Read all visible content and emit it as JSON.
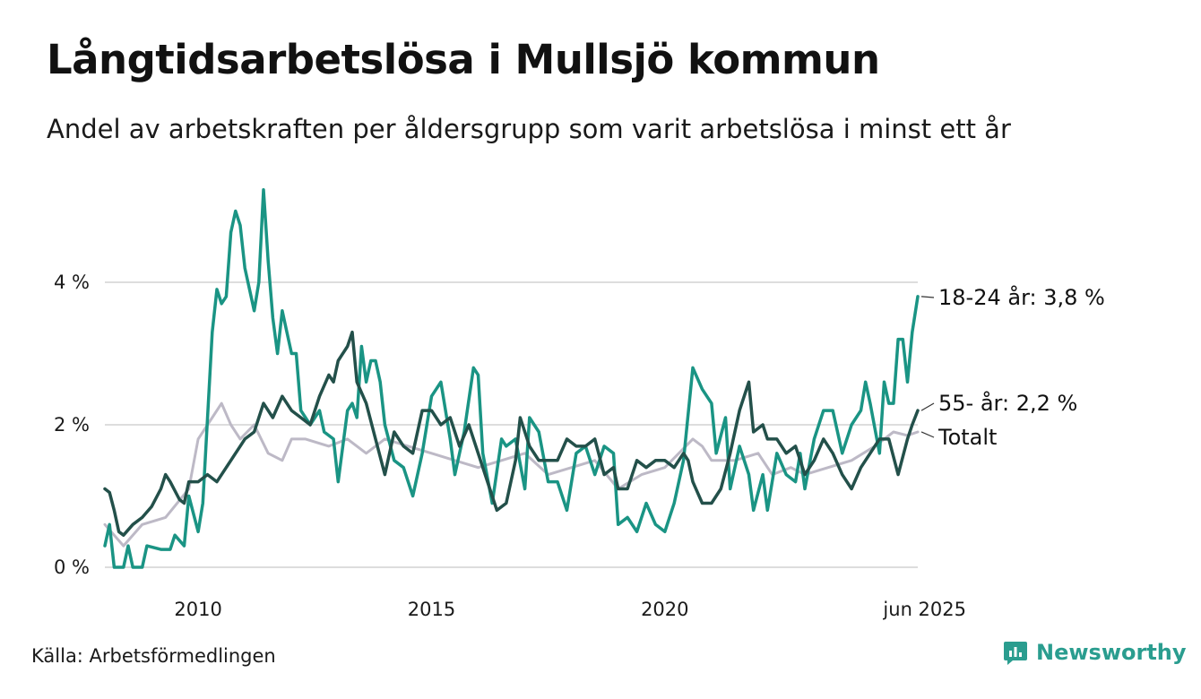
{
  "title": "Långtidsarbetslösa i Mullsjö kommun",
  "subtitle": "Andel av arbetskraften per åldersgrupp som varit arbetslösa i minst ett år",
  "source": "Källa: Arbetsförmedlingen",
  "brand": "Newsworthy",
  "colors": {
    "youth": "#1a9484",
    "senior": "#23504a",
    "total": "#bdb9c6",
    "grid": "#dddddd",
    "brand": "#2a9d8f"
  },
  "chart_data": {
    "type": "line",
    "title": "Långtidsarbetslösa i Mullsjö kommun",
    "subtitle": "Andel av arbetskraften per åldersgrupp som varit arbetslösa i minst ett år",
    "x_range": [
      2008.0,
      2025.42
    ],
    "ylim": [
      0,
      5.5
    ],
    "y_ticks": [
      {
        "value": 0,
        "label": "0 %"
      },
      {
        "value": 2,
        "label": "2 %"
      },
      {
        "value": 4,
        "label": "4 %"
      }
    ],
    "x_ticks": [
      {
        "value": 2010,
        "label": "2010"
      },
      {
        "value": 2015,
        "label": "2015"
      },
      {
        "value": 2020,
        "label": "2020"
      },
      {
        "value": 2025.42,
        "label": "jun 2025"
      }
    ],
    "grid": "horizontal",
    "series": [
      {
        "name": "Totalt",
        "key": "total",
        "end_label": "Totalt",
        "points": [
          [
            2008.0,
            0.6
          ],
          [
            2008.4,
            0.3
          ],
          [
            2008.8,
            0.6
          ],
          [
            2009.3,
            0.7
          ],
          [
            2009.8,
            1.1
          ],
          [
            2010.0,
            1.8
          ],
          [
            2010.3,
            2.1
          ],
          [
            2010.5,
            2.3
          ],
          [
            2010.7,
            2.0
          ],
          [
            2010.9,
            1.8
          ],
          [
            2011.2,
            2.0
          ],
          [
            2011.5,
            1.6
          ],
          [
            2011.8,
            1.5
          ],
          [
            2012.0,
            1.8
          ],
          [
            2012.3,
            1.8
          ],
          [
            2012.8,
            1.7
          ],
          [
            2013.2,
            1.8
          ],
          [
            2013.6,
            1.6
          ],
          [
            2014.0,
            1.8
          ],
          [
            2014.5,
            1.7
          ],
          [
            2015.0,
            1.6
          ],
          [
            2015.5,
            1.5
          ],
          [
            2016.0,
            1.4
          ],
          [
            2016.5,
            1.5
          ],
          [
            2017.0,
            1.6
          ],
          [
            2017.5,
            1.3
          ],
          [
            2018.0,
            1.4
          ],
          [
            2018.5,
            1.5
          ],
          [
            2019.0,
            1.1
          ],
          [
            2019.5,
            1.3
          ],
          [
            2020.0,
            1.4
          ],
          [
            2020.3,
            1.6
          ],
          [
            2020.6,
            1.8
          ],
          [
            2020.8,
            1.7
          ],
          [
            2021.0,
            1.5
          ],
          [
            2021.5,
            1.5
          ],
          [
            2022.0,
            1.6
          ],
          [
            2022.3,
            1.3
          ],
          [
            2022.7,
            1.4
          ],
          [
            2023.0,
            1.3
          ],
          [
            2023.5,
            1.4
          ],
          [
            2024.0,
            1.5
          ],
          [
            2024.5,
            1.7
          ],
          [
            2024.9,
            1.9
          ],
          [
            2025.2,
            1.85
          ],
          [
            2025.42,
            1.9
          ]
        ]
      },
      {
        "name": "18-24 år",
        "key": "youth",
        "end_label": "18-24 år: 3,8 %",
        "points": [
          [
            2008.0,
            0.3
          ],
          [
            2008.1,
            0.6
          ],
          [
            2008.2,
            0.0
          ],
          [
            2008.4,
            0.0
          ],
          [
            2008.5,
            0.3
          ],
          [
            2008.6,
            0.0
          ],
          [
            2008.8,
            0.0
          ],
          [
            2008.9,
            0.3
          ],
          [
            2009.2,
            0.25
          ],
          [
            2009.4,
            0.25
          ],
          [
            2009.5,
            0.45
          ],
          [
            2009.7,
            0.3
          ],
          [
            2009.8,
            1.0
          ],
          [
            2010.0,
            0.5
          ],
          [
            2010.1,
            0.9
          ],
          [
            2010.3,
            3.3
          ],
          [
            2010.4,
            3.9
          ],
          [
            2010.5,
            3.7
          ],
          [
            2010.6,
            3.8
          ],
          [
            2010.7,
            4.7
          ],
          [
            2010.8,
            5.0
          ],
          [
            2010.9,
            4.8
          ],
          [
            2011.0,
            4.2
          ],
          [
            2011.1,
            3.9
          ],
          [
            2011.2,
            3.6
          ],
          [
            2011.3,
            4.0
          ],
          [
            2011.4,
            5.3
          ],
          [
            2011.5,
            4.3
          ],
          [
            2011.6,
            3.5
          ],
          [
            2011.7,
            3.0
          ],
          [
            2011.8,
            3.6
          ],
          [
            2011.9,
            3.3
          ],
          [
            2012.0,
            3.0
          ],
          [
            2012.1,
            3.0
          ],
          [
            2012.2,
            2.2
          ],
          [
            2012.4,
            2.0
          ],
          [
            2012.6,
            2.2
          ],
          [
            2012.7,
            1.9
          ],
          [
            2012.9,
            1.8
          ],
          [
            2013.0,
            1.2
          ],
          [
            2013.2,
            2.2
          ],
          [
            2013.3,
            2.3
          ],
          [
            2013.4,
            2.1
          ],
          [
            2013.5,
            3.1
          ],
          [
            2013.6,
            2.6
          ],
          [
            2013.7,
            2.9
          ],
          [
            2013.8,
            2.9
          ],
          [
            2013.9,
            2.6
          ],
          [
            2014.0,
            2.0
          ],
          [
            2014.2,
            1.5
          ],
          [
            2014.4,
            1.4
          ],
          [
            2014.6,
            1.0
          ],
          [
            2014.8,
            1.6
          ],
          [
            2015.0,
            2.4
          ],
          [
            2015.2,
            2.6
          ],
          [
            2015.4,
            1.8
          ],
          [
            2015.5,
            1.3
          ],
          [
            2015.7,
            1.9
          ],
          [
            2015.9,
            2.8
          ],
          [
            2016.0,
            2.7
          ],
          [
            2016.1,
            1.6
          ],
          [
            2016.3,
            0.9
          ],
          [
            2016.5,
            1.8
          ],
          [
            2016.6,
            1.7
          ],
          [
            2016.8,
            1.8
          ],
          [
            2017.0,
            1.1
          ],
          [
            2017.1,
            2.1
          ],
          [
            2017.3,
            1.9
          ],
          [
            2017.5,
            1.2
          ],
          [
            2017.7,
            1.2
          ],
          [
            2017.9,
            0.8
          ],
          [
            2018.1,
            1.6
          ],
          [
            2018.3,
            1.7
          ],
          [
            2018.5,
            1.3
          ],
          [
            2018.7,
            1.7
          ],
          [
            2018.9,
            1.6
          ],
          [
            2019.0,
            0.6
          ],
          [
            2019.2,
            0.7
          ],
          [
            2019.4,
            0.5
          ],
          [
            2019.6,
            0.9
          ],
          [
            2019.8,
            0.6
          ],
          [
            2020.0,
            0.5
          ],
          [
            2020.2,
            0.9
          ],
          [
            2020.4,
            1.5
          ],
          [
            2020.6,
            2.8
          ],
          [
            2020.8,
            2.5
          ],
          [
            2021.0,
            2.3
          ],
          [
            2021.1,
            1.6
          ],
          [
            2021.3,
            2.1
          ],
          [
            2021.4,
            1.1
          ],
          [
            2021.6,
            1.7
          ],
          [
            2021.8,
            1.3
          ],
          [
            2021.9,
            0.8
          ],
          [
            2022.1,
            1.3
          ],
          [
            2022.2,
            0.8
          ],
          [
            2022.4,
            1.6
          ],
          [
            2022.6,
            1.3
          ],
          [
            2022.8,
            1.2
          ],
          [
            2022.9,
            1.6
          ],
          [
            2023.0,
            1.1
          ],
          [
            2023.2,
            1.8
          ],
          [
            2023.4,
            2.2
          ],
          [
            2023.6,
            2.2
          ],
          [
            2023.8,
            1.6
          ],
          [
            2024.0,
            2.0
          ],
          [
            2024.2,
            2.2
          ],
          [
            2024.3,
            2.6
          ],
          [
            2024.4,
            2.3
          ],
          [
            2024.6,
            1.6
          ],
          [
            2024.7,
            2.6
          ],
          [
            2024.8,
            2.3
          ],
          [
            2024.9,
            2.3
          ],
          [
            2025.0,
            3.2
          ],
          [
            2025.1,
            3.2
          ],
          [
            2025.2,
            2.6
          ],
          [
            2025.3,
            3.3
          ],
          [
            2025.42,
            3.8
          ]
        ]
      },
      {
        "name": "55- år",
        "key": "senior",
        "end_label": "55- år: 2,2 %",
        "points": [
          [
            2008.0,
            1.1
          ],
          [
            2008.1,
            1.05
          ],
          [
            2008.2,
            0.8
          ],
          [
            2008.3,
            0.5
          ],
          [
            2008.4,
            0.45
          ],
          [
            2008.6,
            0.6
          ],
          [
            2008.8,
            0.7
          ],
          [
            2009.0,
            0.85
          ],
          [
            2009.2,
            1.1
          ],
          [
            2009.3,
            1.3
          ],
          [
            2009.4,
            1.2
          ],
          [
            2009.6,
            0.95
          ],
          [
            2009.7,
            0.9
          ],
          [
            2009.8,
            1.2
          ],
          [
            2010.0,
            1.2
          ],
          [
            2010.2,
            1.3
          ],
          [
            2010.4,
            1.2
          ],
          [
            2010.6,
            1.4
          ],
          [
            2010.9,
            1.7
          ],
          [
            2011.0,
            1.8
          ],
          [
            2011.2,
            1.9
          ],
          [
            2011.4,
            2.3
          ],
          [
            2011.6,
            2.1
          ],
          [
            2011.8,
            2.4
          ],
          [
            2012.0,
            2.2
          ],
          [
            2012.2,
            2.1
          ],
          [
            2012.4,
            2.0
          ],
          [
            2012.6,
            2.4
          ],
          [
            2012.8,
            2.7
          ],
          [
            2012.9,
            2.6
          ],
          [
            2013.0,
            2.9
          ],
          [
            2013.2,
            3.1
          ],
          [
            2013.3,
            3.3
          ],
          [
            2013.4,
            2.6
          ],
          [
            2013.6,
            2.3
          ],
          [
            2013.8,
            1.8
          ],
          [
            2014.0,
            1.3
          ],
          [
            2014.2,
            1.9
          ],
          [
            2014.4,
            1.7
          ],
          [
            2014.6,
            1.6
          ],
          [
            2014.8,
            2.2
          ],
          [
            2015.0,
            2.2
          ],
          [
            2015.2,
            2.0
          ],
          [
            2015.4,
            2.1
          ],
          [
            2015.6,
            1.7
          ],
          [
            2015.8,
            2.0
          ],
          [
            2016.0,
            1.6
          ],
          [
            2016.2,
            1.2
          ],
          [
            2016.4,
            0.8
          ],
          [
            2016.6,
            0.9
          ],
          [
            2016.8,
            1.5
          ],
          [
            2016.9,
            2.1
          ],
          [
            2017.1,
            1.7
          ],
          [
            2017.3,
            1.5
          ],
          [
            2017.5,
            1.5
          ],
          [
            2017.7,
            1.5
          ],
          [
            2017.9,
            1.8
          ],
          [
            2018.1,
            1.7
          ],
          [
            2018.3,
            1.7
          ],
          [
            2018.5,
            1.8
          ],
          [
            2018.7,
            1.3
          ],
          [
            2018.9,
            1.4
          ],
          [
            2019.0,
            1.1
          ],
          [
            2019.2,
            1.1
          ],
          [
            2019.4,
            1.5
          ],
          [
            2019.6,
            1.4
          ],
          [
            2019.8,
            1.5
          ],
          [
            2020.0,
            1.5
          ],
          [
            2020.2,
            1.4
          ],
          [
            2020.4,
            1.6
          ],
          [
            2020.5,
            1.5
          ],
          [
            2020.6,
            1.2
          ],
          [
            2020.8,
            0.9
          ],
          [
            2021.0,
            0.9
          ],
          [
            2021.2,
            1.1
          ],
          [
            2021.4,
            1.6
          ],
          [
            2021.6,
            2.2
          ],
          [
            2021.8,
            2.6
          ],
          [
            2021.9,
            1.9
          ],
          [
            2022.1,
            2.0
          ],
          [
            2022.2,
            1.8
          ],
          [
            2022.4,
            1.8
          ],
          [
            2022.6,
            1.6
          ],
          [
            2022.8,
            1.7
          ],
          [
            2023.0,
            1.3
          ],
          [
            2023.2,
            1.5
          ],
          [
            2023.4,
            1.8
          ],
          [
            2023.6,
            1.6
          ],
          [
            2023.8,
            1.3
          ],
          [
            2024.0,
            1.1
          ],
          [
            2024.2,
            1.4
          ],
          [
            2024.4,
            1.6
          ],
          [
            2024.6,
            1.8
          ],
          [
            2024.8,
            1.8
          ],
          [
            2025.0,
            1.3
          ],
          [
            2025.2,
            1.8
          ],
          [
            2025.3,
            2.0
          ],
          [
            2025.42,
            2.2
          ]
        ]
      }
    ]
  }
}
